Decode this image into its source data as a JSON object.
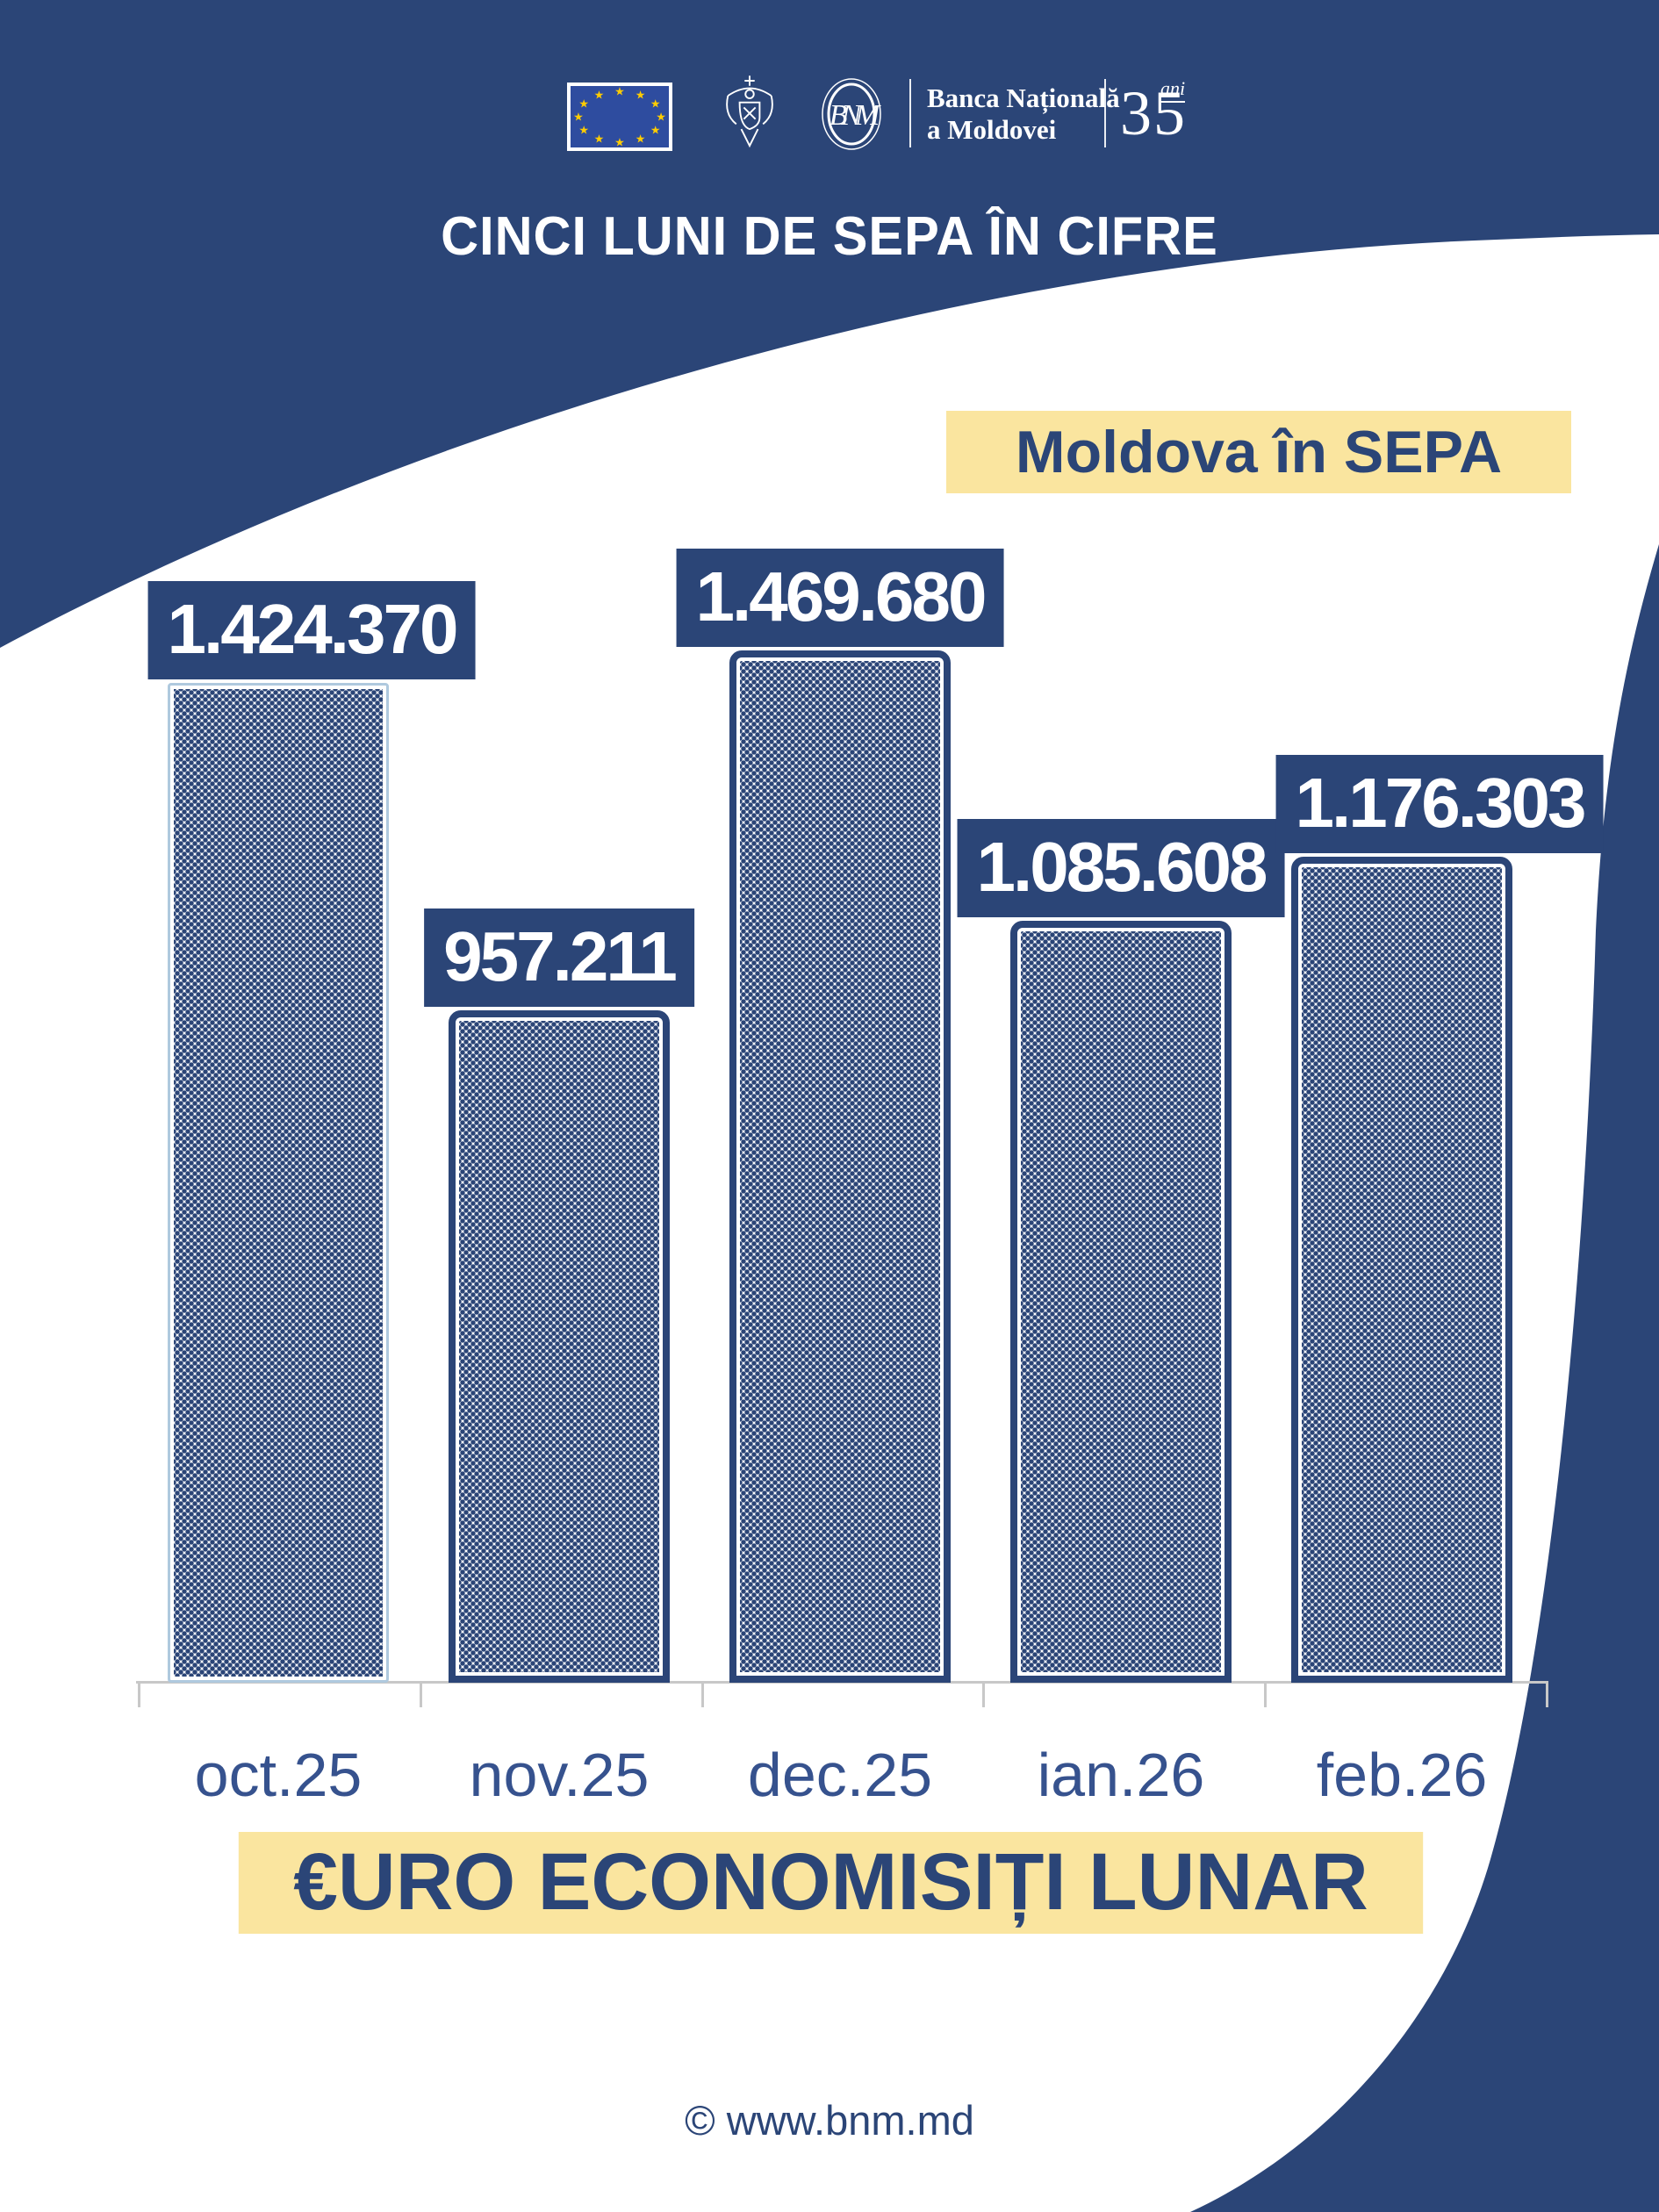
{
  "header": {
    "title": "CINCI LUNI DE SEPA ÎN CIFRE",
    "bnm": {
      "monogram": "BNM",
      "line1": "Banca Națională",
      "line2": "a Moldovei",
      "anniversary_number": "35",
      "anniversary_word": "ani"
    }
  },
  "page": {
    "bottom_title": "€URO ECONOMISIȚI LUNAR",
    "footer": "© www.bnm.md"
  },
  "colors": {
    "dark_blue": "#2B4577",
    "accent_yellow": "#FAE59F",
    "flag_blue": "#2E4C9F",
    "star_yellow": "#FFCC00",
    "axis_gray": "#C8C8C8",
    "first_bar_border": "#AFC9DE",
    "category_label_blue": "#36528E"
  },
  "chart_data": {
    "type": "bar",
    "title": "Moldova în SEPA",
    "categories": [
      "oct.25",
      "nov.25",
      "dec.25",
      "ian.26",
      "feb.26"
    ],
    "values": [
      1424370,
      957211,
      1469680,
      1085608,
      1176303
    ],
    "value_labels": [
      "1.424.370",
      "957.211",
      "1.469.680",
      "1.085.608",
      "1.176.303"
    ],
    "xlabel": "€URO ECONOMISIȚI LUNAR",
    "ylabel": "",
    "ylim": [
      0,
      1500000
    ],
    "grid": false,
    "legend": false,
    "bar_texture": "dotted-halftone",
    "value_label_style": "dark-box-above-bar"
  }
}
